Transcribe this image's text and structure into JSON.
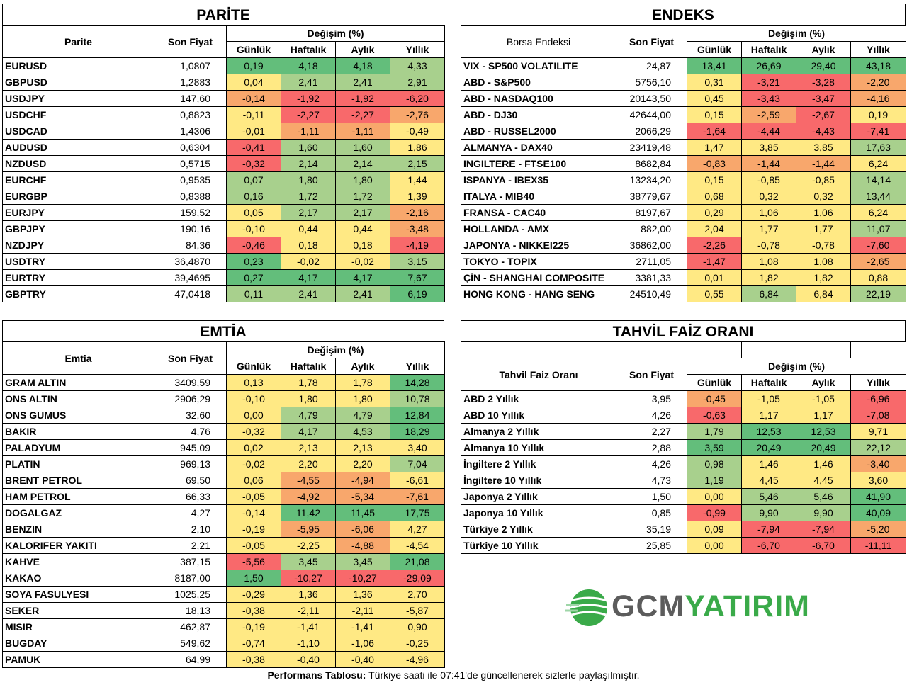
{
  "colors": {
    "pos_strong": "#63be7b",
    "pos": "#a8d08d",
    "neutral": "#ffe984",
    "neg": "#f8a76c",
    "neg_strong": "#f8696b",
    "logo_green": "#3aaa49",
    "logo_gray": "#5c5c5c"
  },
  "headers": {
    "son_fiyat": "Son Fiyat",
    "degisim": "Değişim (%)",
    "gunluk": "Günlük",
    "haftalik": "Haftalık",
    "aylik": "Aylık",
    "yillik": "Yıllık"
  },
  "parite": {
    "title": "PARİTE",
    "col": "Parite",
    "rows": [
      [
        "EURUSD",
        "1,0807",
        "0,19",
        "4,18",
        "4,18",
        "4,33"
      ],
      [
        "GBPUSD",
        "1,2883",
        "0,04",
        "2,41",
        "2,41",
        "2,91"
      ],
      [
        "USDJPY",
        "147,60",
        "-0,14",
        "-1,92",
        "-1,92",
        "-6,20"
      ],
      [
        "USDCHF",
        "0,8823",
        "-0,11",
        "-2,27",
        "-2,27",
        "-2,76"
      ],
      [
        "USDCAD",
        "1,4306",
        "-0,01",
        "-1,11",
        "-1,11",
        "-0,49"
      ],
      [
        "AUDUSD",
        "0,6304",
        "-0,41",
        "1,60",
        "1,60",
        "1,86"
      ],
      [
        "NZDUSD",
        "0,5715",
        "-0,32",
        "2,14",
        "2,14",
        "2,15"
      ],
      [
        "EURCHF",
        "0,9535",
        "0,07",
        "1,80",
        "1,80",
        "1,44"
      ],
      [
        "EURGBP",
        "0,8388",
        "0,16",
        "1,72",
        "1,72",
        "1,39"
      ],
      [
        "EURJPY",
        "159,52",
        "0,05",
        "2,17",
        "2,17",
        "-2,16"
      ],
      [
        "GBPJPY",
        "190,16",
        "-0,10",
        "0,44",
        "0,44",
        "-3,48"
      ],
      [
        "NZDJPY",
        "84,36",
        "-0,46",
        "0,18",
        "0,18",
        "-4,19"
      ],
      [
        "USDTRY",
        "36,4870",
        "0,23",
        "-0,02",
        "-0,02",
        "3,15"
      ],
      [
        "EURTRY",
        "39,4695",
        "0,27",
        "4,17",
        "4,17",
        "7,67"
      ],
      [
        "GBPTRY",
        "47,0418",
        "0,11",
        "2,41",
        "2,41",
        "6,19"
      ]
    ]
  },
  "endeks": {
    "title": "ENDEKS",
    "col": "Borsa Endeksi",
    "rows": [
      [
        "VIX  - SP500 VOLATILITE",
        "24,87",
        "13,41",
        "26,69",
        "29,40",
        "43,18"
      ],
      [
        "ABD - S&P500",
        "5756,10",
        "0,31",
        "-3,21",
        "-3,28",
        "-2,20"
      ],
      [
        "ABD - NASDAQ100",
        "20143,50",
        "0,45",
        "-3,43",
        "-3,47",
        "-4,16"
      ],
      [
        "ABD - DJ30",
        "42644,00",
        "0,15",
        "-2,59",
        "-2,67",
        "0,19"
      ],
      [
        "ABD - RUSSEL2000",
        "2066,29",
        "-1,64",
        "-4,44",
        "-4,43",
        "-7,41"
      ],
      [
        "ALMANYA - DAX40",
        "23419,48",
        "1,47",
        "3,85",
        "3,85",
        "17,63"
      ],
      [
        "INGILTERE - FTSE100",
        "8682,84",
        "-0,83",
        "-1,44",
        "-1,44",
        "6,24"
      ],
      [
        "ISPANYA - IBEX35",
        "13234,20",
        "0,15",
        "-0,85",
        "-0,85",
        "14,14"
      ],
      [
        "ITALYA - MIB40",
        "38779,67",
        "0,68",
        "0,32",
        "0,32",
        "13,44"
      ],
      [
        "FRANSA - CAC40",
        "8197,67",
        "0,29",
        "1,06",
        "1,06",
        "6,24"
      ],
      [
        "HOLLANDA - AMX",
        "882,00",
        "2,04",
        "1,77",
        "1,77",
        "11,07"
      ],
      [
        "JAPONYA - NIKKEI225",
        "36862,00",
        "-2,26",
        "-0,78",
        "-0,78",
        "-7,60"
      ],
      [
        "TOKYO - TOPIX",
        "2711,05",
        "-1,47",
        "1,08",
        "1,08",
        "-2,65"
      ],
      [
        "ÇİN - SHANGHAI COMPOSITE",
        "3381,33",
        "0,01",
        "1,82",
        "1,82",
        "0,88"
      ],
      [
        "HONG KONG - HANG SENG",
        "24510,49",
        "0,55",
        "6,84",
        "6,84",
        "22,19"
      ]
    ]
  },
  "emtia": {
    "title": "EMTİA",
    "col": "Emtia",
    "rows": [
      [
        "GRAM ALTIN",
        "3409,59",
        "0,13",
        "1,78",
        "1,78",
        "14,28"
      ],
      [
        "ONS ALTIN",
        "2906,29",
        "-0,10",
        "1,80",
        "1,80",
        "10,78"
      ],
      [
        "ONS GUMUS",
        "32,60",
        "0,00",
        "4,79",
        "4,79",
        "12,84"
      ],
      [
        "BAKIR",
        "4,76",
        "-0,32",
        "4,17",
        "4,53",
        "18,29"
      ],
      [
        "PALADYUM",
        "945,09",
        "0,02",
        "2,13",
        "2,13",
        "3,40"
      ],
      [
        "PLATIN",
        "969,13",
        "-0,02",
        "2,20",
        "2,20",
        "7,04"
      ],
      [
        "BRENT PETROL",
        "69,50",
        "0,06",
        "-4,55",
        "-4,94",
        "-6,61"
      ],
      [
        "HAM PETROL",
        "66,33",
        "-0,05",
        "-4,92",
        "-5,34",
        "-7,61"
      ],
      [
        "DOGALGAZ",
        "4,27",
        "-0,14",
        "11,42",
        "11,45",
        "17,75"
      ],
      [
        "BENZIN",
        "2,10",
        "-0,19",
        "-5,95",
        "-6,06",
        "4,27"
      ],
      [
        "KALORIFER YAKITI",
        "2,21",
        "-0,05",
        "-2,25",
        "-4,88",
        "-4,54"
      ],
      [
        "KAHVE",
        "387,15",
        "-5,56",
        "3,45",
        "3,45",
        "21,08"
      ],
      [
        "KAKAO",
        "8187,00",
        "1,50",
        "-10,27",
        "-10,27",
        "-29,09"
      ],
      [
        "SOYA FASULYESI",
        "1025,25",
        "-0,29",
        "1,36",
        "1,36",
        "2,70"
      ],
      [
        "SEKER",
        "18,13",
        "-0,38",
        "-2,11",
        "-2,11",
        "-5,87"
      ],
      [
        "MISIR",
        "462,87",
        "-0,19",
        "-1,41",
        "-1,41",
        "0,90"
      ],
      [
        "BUGDAY",
        "549,62",
        "-0,74",
        "-1,10",
        "-1,06",
        "-0,25"
      ],
      [
        "PAMUK",
        "64,99",
        "-0,38",
        "-0,40",
        "-0,40",
        "-4,96"
      ]
    ]
  },
  "tahvil": {
    "title": "TAHVİL FAİZ ORANI",
    "col": "Tahvil Faiz Oranı",
    "rows": [
      [
        "ABD 2 Yıllık",
        "3,95",
        "-0,45",
        "-1,05",
        "-1,05",
        "-6,96"
      ],
      [
        "ABD 10 Yıllık",
        "4,26",
        "-0,63",
        "1,17",
        "1,17",
        "-7,08"
      ],
      [
        "Almanya 2 Yıllık",
        "2,27",
        "1,79",
        "12,53",
        "12,53",
        "9,71"
      ],
      [
        "Almanya 10 Yıllık",
        "2,88",
        "3,59",
        "20,49",
        "20,49",
        "22,12"
      ],
      [
        "İngiltere 2 Yıllık",
        "4,26",
        "0,98",
        "1,46",
        "1,46",
        "-3,40"
      ],
      [
        "İngiltere 10 Yıllık",
        "4,73",
        "1,19",
        "4,45",
        "4,45",
        "3,60"
      ],
      [
        "Japonya 2 Yıllık",
        "1,50",
        "0,00",
        "5,46",
        "5,46",
        "41,90"
      ],
      [
        "Japonya 10 Yıllık",
        "0,85",
        "-0,99",
        "9,90",
        "9,90",
        "40,09"
      ],
      [
        "Türkiye 2 Yıllık",
        "35,19",
        "0,09",
        "-7,94",
        "-7,94",
        "-5,20"
      ],
      [
        "Türkiye 10 Yıllık",
        "25,85",
        "0,00",
        "-6,70",
        "-6,70",
        "-11,11"
      ]
    ]
  },
  "logo": {
    "gcm": "GCM",
    "yatirim": "YATIRIM"
  },
  "footer": {
    "bold": "Performans Tablosu:",
    "text": " Türkiye saati ile 07:41'de güncellenerek sizlerle paylaşılmıştır."
  }
}
